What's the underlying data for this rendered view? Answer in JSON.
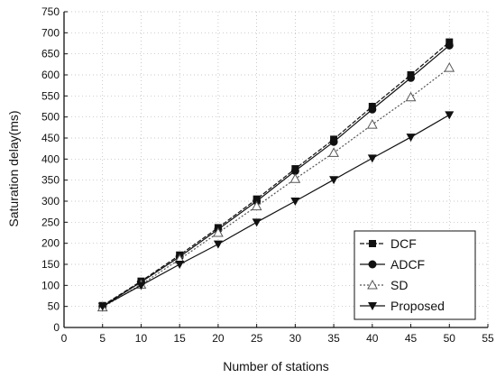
{
  "chart_data": {
    "type": "line",
    "title": "",
    "xlabel": "Number of stations",
    "ylabel": "Saturation delay(ms)",
    "xlim": [
      0,
      55
    ],
    "ylim": [
      0,
      750
    ],
    "xticks": [
      0,
      5,
      10,
      15,
      20,
      25,
      30,
      35,
      40,
      45,
      50,
      55
    ],
    "yticks": [
      0,
      50,
      100,
      150,
      200,
      250,
      300,
      350,
      400,
      450,
      500,
      550,
      600,
      650,
      700,
      750
    ],
    "grid": true,
    "legend_position": "bottom-right",
    "x": [
      5,
      10,
      15,
      20,
      25,
      30,
      35,
      40,
      45,
      50
    ],
    "series": [
      {
        "name": "DCF",
        "marker": "square",
        "dash": "dash",
        "values": [
          52,
          110,
          172,
          237,
          305,
          377,
          447,
          525,
          600,
          678
        ]
      },
      {
        "name": "ADCF",
        "marker": "circle",
        "dash": "solid",
        "values": [
          50,
          108,
          168,
          233,
          300,
          372,
          441,
          518,
          593,
          670
        ]
      },
      {
        "name": "SD",
        "marker": "triangle-up-open",
        "dash": "dot",
        "values": [
          48,
          102,
          162,
          225,
          288,
          353,
          415,
          482,
          547,
          617
        ]
      },
      {
        "name": "Proposed",
        "marker": "triangle-down",
        "dash": "solid",
        "values": [
          50,
          100,
          150,
          198,
          250,
          300,
          351,
          402,
          452,
          505
        ]
      }
    ]
  }
}
